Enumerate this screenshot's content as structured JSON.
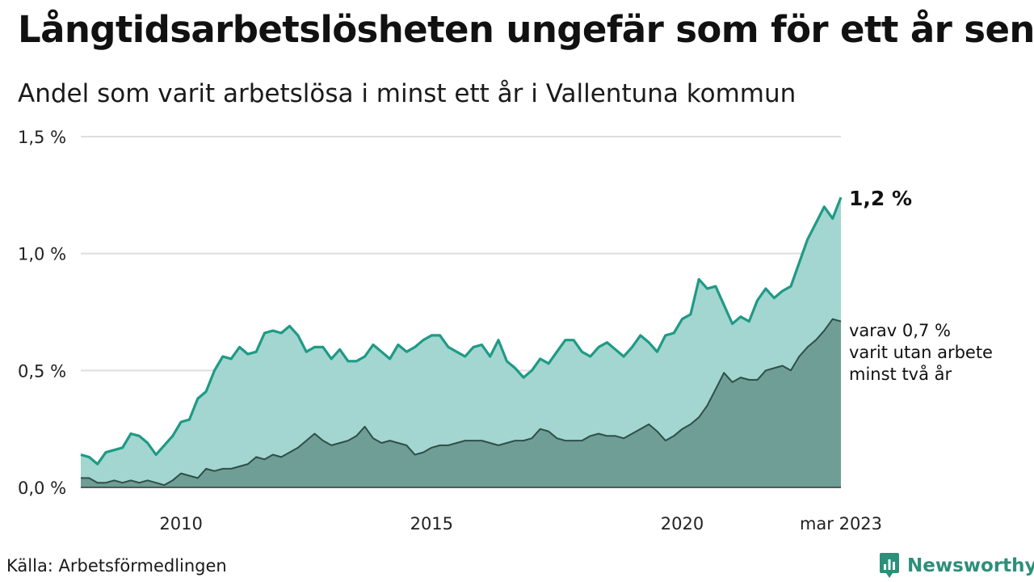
{
  "header": {
    "title": "Långtidsarbetslösheten ungefär som för ett år sen",
    "subtitle": "Andel som varit arbetslösa i minst ett år i Vallentuna kommun"
  },
  "footer": {
    "source": "Källa: Arbetsförmedlingen",
    "brand": "Newsworthy",
    "brand_icon": "bar-chart-logo-icon"
  },
  "colors": {
    "total_line": "#1f9a86",
    "total_fill": "#a3d6d0",
    "two_year_line": "#2f4f48",
    "two_year_fill": "#6f9e96",
    "grid": "#dddddd",
    "brand": "#2c8f7a"
  },
  "chart_data": {
    "type": "area",
    "x_start": "2008-01",
    "x_end": "2023-03",
    "ylim": [
      0,
      1.5
    ],
    "y_ticks": [
      {
        "value": 0,
        "label": "0,0 %"
      },
      {
        "value": 0.5,
        "label": "0,5 %"
      },
      {
        "value": 1.0,
        "label": "1,0 %"
      },
      {
        "value": 1.5,
        "label": "1,5 %"
      }
    ],
    "x_ticks": [
      {
        "date": "2010-01",
        "label": "2010"
      },
      {
        "date": "2015-01",
        "label": "2015"
      },
      {
        "date": "2020-01",
        "label": "2020"
      },
      {
        "date": "2023-03",
        "label": "mar 2023"
      }
    ],
    "grid": true,
    "annotations": {
      "total_end_label": "1,2 %",
      "two_year_end_label": [
        "varav 0,7 %",
        "varit utan arbete",
        "minst två år"
      ]
    },
    "series": [
      {
        "key": "minst_ett_ar",
        "values": [
          [
            "2008-01",
            0.14
          ],
          [
            "2008-03",
            0.13
          ],
          [
            "2008-05",
            0.1
          ],
          [
            "2008-07",
            0.15
          ],
          [
            "2008-09",
            0.16
          ],
          [
            "2008-11",
            0.17
          ],
          [
            "2009-01",
            0.23
          ],
          [
            "2009-03",
            0.22
          ],
          [
            "2009-05",
            0.19
          ],
          [
            "2009-07",
            0.14
          ],
          [
            "2009-09",
            0.18
          ],
          [
            "2009-11",
            0.22
          ],
          [
            "2010-01",
            0.28
          ],
          [
            "2010-03",
            0.29
          ],
          [
            "2010-05",
            0.38
          ],
          [
            "2010-07",
            0.41
          ],
          [
            "2010-09",
            0.5
          ],
          [
            "2010-11",
            0.56
          ],
          [
            "2011-01",
            0.55
          ],
          [
            "2011-03",
            0.6
          ],
          [
            "2011-05",
            0.57
          ],
          [
            "2011-07",
            0.58
          ],
          [
            "2011-09",
            0.66
          ],
          [
            "2011-11",
            0.67
          ],
          [
            "2012-01",
            0.66
          ],
          [
            "2012-03",
            0.69
          ],
          [
            "2012-05",
            0.65
          ],
          [
            "2012-07",
            0.58
          ],
          [
            "2012-09",
            0.6
          ],
          [
            "2012-11",
            0.6
          ],
          [
            "2013-01",
            0.55
          ],
          [
            "2013-03",
            0.59
          ],
          [
            "2013-05",
            0.54
          ],
          [
            "2013-07",
            0.54
          ],
          [
            "2013-09",
            0.56
          ],
          [
            "2013-11",
            0.61
          ],
          [
            "2014-01",
            0.58
          ],
          [
            "2014-03",
            0.55
          ],
          [
            "2014-05",
            0.61
          ],
          [
            "2014-07",
            0.58
          ],
          [
            "2014-09",
            0.6
          ],
          [
            "2014-11",
            0.63
          ],
          [
            "2015-01",
            0.65
          ],
          [
            "2015-03",
            0.65
          ],
          [
            "2015-05",
            0.6
          ],
          [
            "2015-07",
            0.58
          ],
          [
            "2015-09",
            0.56
          ],
          [
            "2015-11",
            0.6
          ],
          [
            "2016-01",
            0.61
          ],
          [
            "2016-03",
            0.56
          ],
          [
            "2016-05",
            0.63
          ],
          [
            "2016-07",
            0.54
          ],
          [
            "2016-09",
            0.51
          ],
          [
            "2016-11",
            0.47
          ],
          [
            "2017-01",
            0.5
          ],
          [
            "2017-03",
            0.55
          ],
          [
            "2017-05",
            0.53
          ],
          [
            "2017-07",
            0.58
          ],
          [
            "2017-09",
            0.63
          ],
          [
            "2017-11",
            0.63
          ],
          [
            "2018-01",
            0.58
          ],
          [
            "2018-03",
            0.56
          ],
          [
            "2018-05",
            0.6
          ],
          [
            "2018-07",
            0.62
          ],
          [
            "2018-09",
            0.59
          ],
          [
            "2018-11",
            0.56
          ],
          [
            "2019-01",
            0.6
          ],
          [
            "2019-03",
            0.65
          ],
          [
            "2019-05",
            0.62
          ],
          [
            "2019-07",
            0.58
          ],
          [
            "2019-09",
            0.65
          ],
          [
            "2019-11",
            0.66
          ],
          [
            "2020-01",
            0.72
          ],
          [
            "2020-03",
            0.74
          ],
          [
            "2020-05",
            0.89
          ],
          [
            "2020-07",
            0.85
          ],
          [
            "2020-09",
            0.86
          ],
          [
            "2020-11",
            0.78
          ],
          [
            "2021-01",
            0.7
          ],
          [
            "2021-03",
            0.73
          ],
          [
            "2021-05",
            0.71
          ],
          [
            "2021-07",
            0.8
          ],
          [
            "2021-09",
            0.85
          ],
          [
            "2021-11",
            0.81
          ],
          [
            "2022-01",
            0.84
          ],
          [
            "2022-03",
            0.86
          ],
          [
            "2022-05",
            0.96
          ],
          [
            "2022-07",
            1.06
          ],
          [
            "2022-09",
            1.13
          ],
          [
            "2022-11",
            1.2
          ],
          [
            "2023-01",
            1.15
          ],
          [
            "2023-03",
            1.24
          ]
        ]
      },
      {
        "key": "minst_tva_ar",
        "values": [
          [
            "2008-01",
            0.04
          ],
          [
            "2008-03",
            0.04
          ],
          [
            "2008-05",
            0.02
          ],
          [
            "2008-07",
            0.02
          ],
          [
            "2008-09",
            0.03
          ],
          [
            "2008-11",
            0.02
          ],
          [
            "2009-01",
            0.03
          ],
          [
            "2009-03",
            0.02
          ],
          [
            "2009-05",
            0.03
          ],
          [
            "2009-07",
            0.02
          ],
          [
            "2009-09",
            0.01
          ],
          [
            "2009-11",
            0.03
          ],
          [
            "2010-01",
            0.06
          ],
          [
            "2010-03",
            0.05
          ],
          [
            "2010-05",
            0.04
          ],
          [
            "2010-07",
            0.08
          ],
          [
            "2010-09",
            0.07
          ],
          [
            "2010-11",
            0.08
          ],
          [
            "2011-01",
            0.08
          ],
          [
            "2011-03",
            0.09
          ],
          [
            "2011-05",
            0.1
          ],
          [
            "2011-07",
            0.13
          ],
          [
            "2011-09",
            0.12
          ],
          [
            "2011-11",
            0.14
          ],
          [
            "2012-01",
            0.13
          ],
          [
            "2012-03",
            0.15
          ],
          [
            "2012-05",
            0.17
          ],
          [
            "2012-07",
            0.2
          ],
          [
            "2012-09",
            0.23
          ],
          [
            "2012-11",
            0.2
          ],
          [
            "2013-01",
            0.18
          ],
          [
            "2013-03",
            0.19
          ],
          [
            "2013-05",
            0.2
          ],
          [
            "2013-07",
            0.22
          ],
          [
            "2013-09",
            0.26
          ],
          [
            "2013-11",
            0.21
          ],
          [
            "2014-01",
            0.19
          ],
          [
            "2014-03",
            0.2
          ],
          [
            "2014-05",
            0.19
          ],
          [
            "2014-07",
            0.18
          ],
          [
            "2014-09",
            0.14
          ],
          [
            "2014-11",
            0.15
          ],
          [
            "2015-01",
            0.17
          ],
          [
            "2015-03",
            0.18
          ],
          [
            "2015-05",
            0.18
          ],
          [
            "2015-07",
            0.19
          ],
          [
            "2015-09",
            0.2
          ],
          [
            "2015-11",
            0.2
          ],
          [
            "2016-01",
            0.2
          ],
          [
            "2016-03",
            0.19
          ],
          [
            "2016-05",
            0.18
          ],
          [
            "2016-07",
            0.19
          ],
          [
            "2016-09",
            0.2
          ],
          [
            "2016-11",
            0.2
          ],
          [
            "2017-01",
            0.21
          ],
          [
            "2017-03",
            0.25
          ],
          [
            "2017-05",
            0.24
          ],
          [
            "2017-07",
            0.21
          ],
          [
            "2017-09",
            0.2
          ],
          [
            "2017-11",
            0.2
          ],
          [
            "2018-01",
            0.2
          ],
          [
            "2018-03",
            0.22
          ],
          [
            "2018-05",
            0.23
          ],
          [
            "2018-07",
            0.22
          ],
          [
            "2018-09",
            0.22
          ],
          [
            "2018-11",
            0.21
          ],
          [
            "2019-01",
            0.23
          ],
          [
            "2019-03",
            0.25
          ],
          [
            "2019-05",
            0.27
          ],
          [
            "2019-07",
            0.24
          ],
          [
            "2019-09",
            0.2
          ],
          [
            "2019-11",
            0.22
          ],
          [
            "2020-01",
            0.25
          ],
          [
            "2020-03",
            0.27
          ],
          [
            "2020-05",
            0.3
          ],
          [
            "2020-07",
            0.35
          ],
          [
            "2020-09",
            0.42
          ],
          [
            "2020-11",
            0.49
          ],
          [
            "2021-01",
            0.45
          ],
          [
            "2021-03",
            0.47
          ],
          [
            "2021-05",
            0.46
          ],
          [
            "2021-07",
            0.46
          ],
          [
            "2021-09",
            0.5
          ],
          [
            "2021-11",
            0.51
          ],
          [
            "2022-01",
            0.52
          ],
          [
            "2022-03",
            0.5
          ],
          [
            "2022-05",
            0.56
          ],
          [
            "2022-07",
            0.6
          ],
          [
            "2022-09",
            0.63
          ],
          [
            "2022-11",
            0.67
          ],
          [
            "2023-01",
            0.72
          ],
          [
            "2023-03",
            0.71
          ]
        ]
      }
    ]
  }
}
